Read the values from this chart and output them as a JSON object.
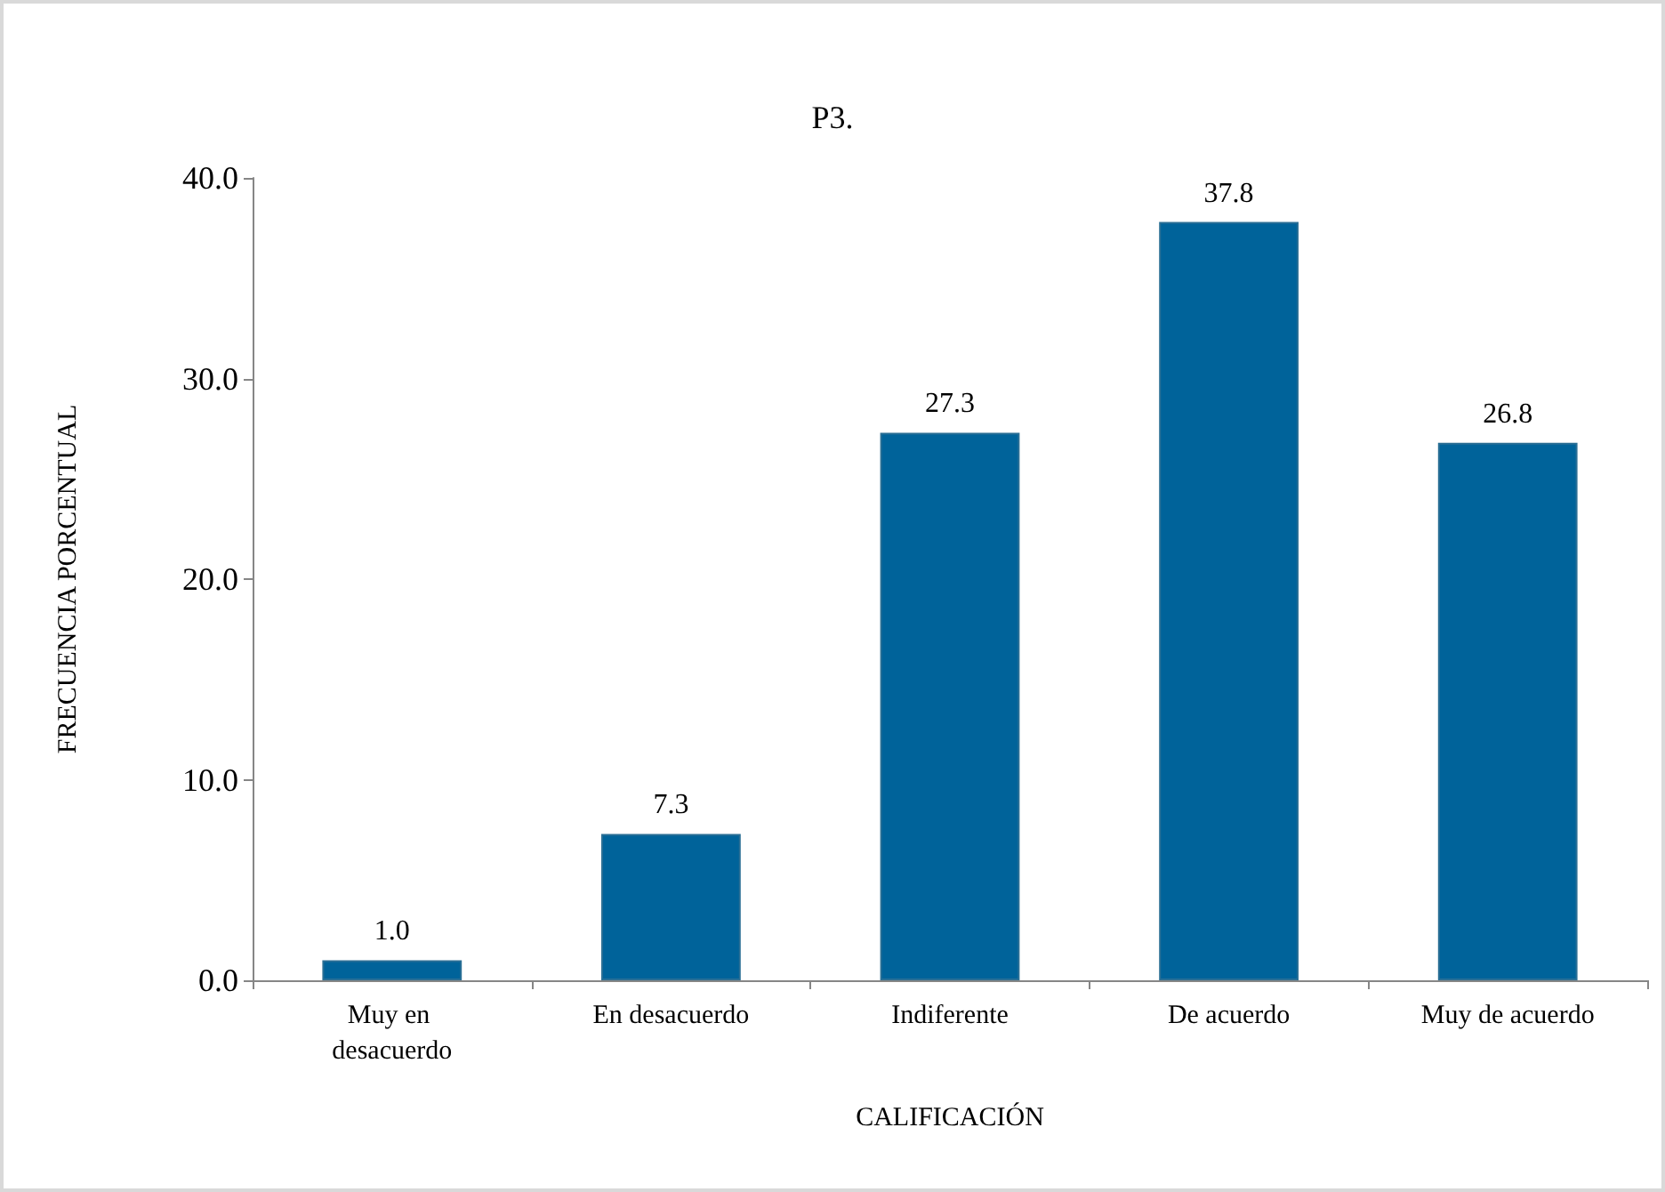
{
  "chart_data": {
    "type": "bar",
    "title": "P3.",
    "xlabel": "CALIFICACIÓN",
    "ylabel": "FRECUENCIA PORCENTUAL",
    "categories": [
      "Muy en desacuerdo",
      "En desacuerdo",
      "Indiferente",
      "De acuerdo",
      "Muy de acuerdo"
    ],
    "values": [
      1.0,
      7.3,
      27.3,
      37.8,
      26.8
    ],
    "color": "#00639a",
    "ylim": [
      0,
      40
    ],
    "yticks": [
      {
        "value": 0,
        "label": "0.0"
      },
      {
        "value": 10,
        "label": "10.0"
      },
      {
        "value": 20,
        "label": "20.0"
      },
      {
        "value": 30,
        "label": "30.0"
      },
      {
        "value": 40,
        "label": "40.0"
      }
    ],
    "value_labels": [
      "1.0",
      "7.3",
      "27.3",
      "37.8",
      "26.8"
    ]
  }
}
